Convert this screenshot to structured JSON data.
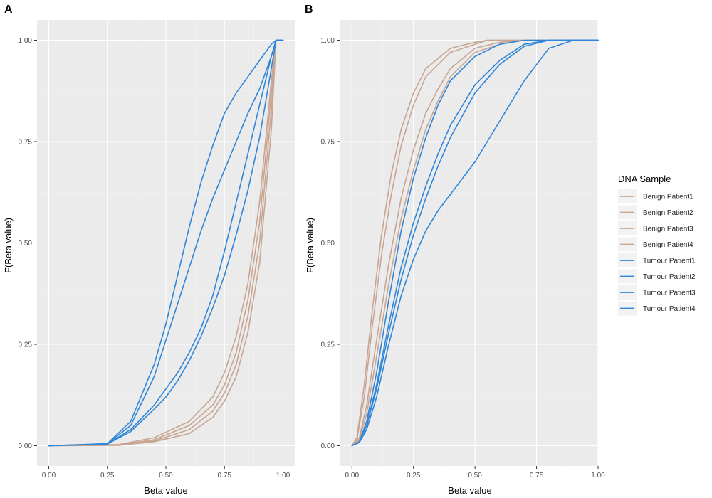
{
  "chart_data": [
    {
      "type": "line",
      "panel_label": "A",
      "xlabel": "Beta value",
      "ylabel": "F(Beta value)",
      "xlim": [
        -0.05,
        1.05
      ],
      "ylim": [
        -0.05,
        1.05
      ],
      "x_ticks": [
        "0.00",
        "0.25",
        "0.50",
        "0.75",
        "1.00"
      ],
      "y_ticks": [
        "0.00",
        "0.25",
        "0.50",
        "0.75",
        "1.00"
      ],
      "grid": true,
      "series": [
        {
          "name": "Benign Patient1",
          "color": "#c8a592",
          "x": [
            0.0,
            0.3,
            0.45,
            0.6,
            0.7,
            0.75,
            0.8,
            0.85,
            0.9,
            0.95,
            0.97,
            1.0
          ],
          "y": [
            0.0,
            0.003,
            0.02,
            0.06,
            0.12,
            0.18,
            0.27,
            0.4,
            0.6,
            0.9,
            1.0,
            1.0
          ]
        },
        {
          "name": "Benign Patient2",
          "color": "#c8a592",
          "x": [
            0.0,
            0.3,
            0.45,
            0.6,
            0.7,
            0.75,
            0.8,
            0.85,
            0.9,
            0.95,
            0.97,
            1.0
          ],
          "y": [
            0.0,
            0.002,
            0.015,
            0.05,
            0.1,
            0.15,
            0.23,
            0.36,
            0.55,
            0.87,
            1.0,
            1.0
          ]
        },
        {
          "name": "Benign Patient3",
          "color": "#c8a592",
          "x": [
            0.0,
            0.3,
            0.45,
            0.6,
            0.7,
            0.75,
            0.8,
            0.85,
            0.9,
            0.95,
            0.97,
            1.0
          ],
          "y": [
            0.0,
            0.002,
            0.012,
            0.04,
            0.085,
            0.13,
            0.2,
            0.32,
            0.5,
            0.83,
            1.0,
            1.0
          ]
        },
        {
          "name": "Benign Patient4",
          "color": "#c8a592",
          "x": [
            0.0,
            0.3,
            0.45,
            0.6,
            0.7,
            0.75,
            0.8,
            0.85,
            0.9,
            0.95,
            0.97,
            1.0
          ],
          "y": [
            0.0,
            0.001,
            0.01,
            0.03,
            0.07,
            0.11,
            0.17,
            0.28,
            0.45,
            0.78,
            1.0,
            1.0
          ]
        },
        {
          "name": "Tumour Patient1",
          "color": "#2f86d8",
          "x": [
            0.0,
            0.25,
            0.35,
            0.45,
            0.5,
            0.55,
            0.6,
            0.65,
            0.7,
            0.75,
            0.8,
            0.85,
            0.9,
            0.95,
            0.97,
            1.0
          ],
          "y": [
            0.0,
            0.005,
            0.06,
            0.2,
            0.3,
            0.42,
            0.54,
            0.65,
            0.74,
            0.82,
            0.87,
            0.91,
            0.95,
            0.99,
            1.0,
            1.0
          ]
        },
        {
          "name": "Tumour Patient2",
          "color": "#2f86d8",
          "x": [
            0.0,
            0.25,
            0.35,
            0.45,
            0.5,
            0.55,
            0.6,
            0.65,
            0.7,
            0.75,
            0.8,
            0.85,
            0.9,
            0.95,
            0.97,
            1.0
          ],
          "y": [
            0.0,
            0.005,
            0.05,
            0.17,
            0.26,
            0.35,
            0.44,
            0.53,
            0.61,
            0.68,
            0.75,
            0.82,
            0.88,
            0.96,
            1.0,
            1.0
          ]
        },
        {
          "name": "Tumour Patient3",
          "color": "#2f86d8",
          "x": [
            0.0,
            0.25,
            0.35,
            0.45,
            0.5,
            0.55,
            0.6,
            0.65,
            0.7,
            0.75,
            0.8,
            0.85,
            0.9,
            0.95,
            0.97,
            1.0
          ],
          "y": [
            0.0,
            0.004,
            0.04,
            0.1,
            0.14,
            0.18,
            0.23,
            0.29,
            0.37,
            0.48,
            0.6,
            0.72,
            0.84,
            0.96,
            1.0,
            1.0
          ]
        },
        {
          "name": "Tumour Patient4",
          "color": "#2f86d8",
          "x": [
            0.0,
            0.25,
            0.35,
            0.45,
            0.5,
            0.55,
            0.6,
            0.65,
            0.7,
            0.75,
            0.8,
            0.85,
            0.9,
            0.95,
            0.97,
            1.0
          ],
          "y": [
            0.0,
            0.004,
            0.035,
            0.09,
            0.12,
            0.16,
            0.21,
            0.27,
            0.34,
            0.42,
            0.52,
            0.63,
            0.76,
            0.93,
            1.0,
            1.0
          ]
        }
      ]
    },
    {
      "type": "line",
      "panel_label": "B",
      "xlabel": "Beta value",
      "ylabel": "F(Beta value)",
      "xlim": [
        -0.05,
        1.0
      ],
      "ylim": [
        -0.05,
        1.05
      ],
      "x_ticks": [
        "0.00",
        "0.25",
        "0.50",
        "0.75",
        "1.00"
      ],
      "y_ticks": [
        "0.00",
        "0.25",
        "0.50",
        "0.75",
        "1.00"
      ],
      "grid": true,
      "series": [
        {
          "name": "Benign Patient1",
          "color": "#c8a592",
          "x": [
            0.0,
            0.02,
            0.05,
            0.08,
            0.12,
            0.16,
            0.2,
            0.25,
            0.3,
            0.4,
            0.5,
            0.55,
            0.6,
            1.0
          ],
          "y": [
            0.0,
            0.02,
            0.15,
            0.32,
            0.52,
            0.67,
            0.78,
            0.87,
            0.93,
            0.98,
            0.995,
            1.0,
            1.0,
            1.0
          ]
        },
        {
          "name": "Benign Patient2",
          "color": "#c8a592",
          "x": [
            0.0,
            0.02,
            0.05,
            0.08,
            0.12,
            0.16,
            0.2,
            0.25,
            0.3,
            0.4,
            0.5,
            0.55,
            0.6,
            1.0
          ],
          "y": [
            0.0,
            0.015,
            0.12,
            0.28,
            0.47,
            0.62,
            0.74,
            0.84,
            0.91,
            0.97,
            0.99,
            1.0,
            1.0,
            1.0
          ]
        },
        {
          "name": "Benign Patient3",
          "color": "#c8a592",
          "x": [
            0.0,
            0.03,
            0.06,
            0.1,
            0.15,
            0.2,
            0.25,
            0.3,
            0.35,
            0.4,
            0.5,
            0.6,
            0.7,
            1.0
          ],
          "y": [
            0.0,
            0.02,
            0.1,
            0.26,
            0.45,
            0.61,
            0.73,
            0.82,
            0.88,
            0.93,
            0.98,
            0.995,
            1.0,
            1.0
          ]
        },
        {
          "name": "Benign Patient4",
          "color": "#c8a592",
          "x": [
            0.0,
            0.03,
            0.06,
            0.1,
            0.15,
            0.2,
            0.25,
            0.3,
            0.35,
            0.4,
            0.5,
            0.6,
            0.7,
            1.0
          ],
          "y": [
            0.0,
            0.015,
            0.08,
            0.22,
            0.4,
            0.56,
            0.68,
            0.78,
            0.85,
            0.91,
            0.97,
            0.99,
            1.0,
            1.0
          ]
        },
        {
          "name": "Tumour Patient1",
          "color": "#2f86d8",
          "x": [
            0.0,
            0.03,
            0.06,
            0.1,
            0.15,
            0.2,
            0.25,
            0.3,
            0.35,
            0.4,
            0.5,
            0.6,
            0.7,
            1.0
          ],
          "y": [
            0.0,
            0.01,
            0.06,
            0.18,
            0.36,
            0.53,
            0.66,
            0.76,
            0.84,
            0.9,
            0.96,
            0.99,
            1.0,
            1.0
          ]
        },
        {
          "name": "Tumour Patient2",
          "color": "#2f86d8",
          "x": [
            0.0,
            0.03,
            0.06,
            0.1,
            0.15,
            0.2,
            0.25,
            0.3,
            0.35,
            0.4,
            0.5,
            0.6,
            0.7,
            0.8,
            1.0
          ],
          "y": [
            0.0,
            0.01,
            0.05,
            0.15,
            0.3,
            0.44,
            0.55,
            0.64,
            0.72,
            0.79,
            0.89,
            0.95,
            0.99,
            1.0,
            1.0
          ]
        },
        {
          "name": "Tumour Patient3",
          "color": "#2f86d8",
          "x": [
            0.0,
            0.03,
            0.06,
            0.1,
            0.15,
            0.2,
            0.25,
            0.3,
            0.35,
            0.4,
            0.5,
            0.6,
            0.7,
            0.8,
            1.0
          ],
          "y": [
            0.0,
            0.01,
            0.05,
            0.14,
            0.28,
            0.41,
            0.52,
            0.61,
            0.69,
            0.76,
            0.87,
            0.94,
            0.985,
            1.0,
            1.0
          ]
        },
        {
          "name": "Tumour Patient4",
          "color": "#2f86d8",
          "x": [
            0.0,
            0.03,
            0.06,
            0.1,
            0.15,
            0.2,
            0.25,
            0.3,
            0.35,
            0.4,
            0.5,
            0.6,
            0.7,
            0.8,
            0.9,
            1.0
          ],
          "y": [
            0.0,
            0.008,
            0.04,
            0.12,
            0.25,
            0.37,
            0.46,
            0.53,
            0.58,
            0.62,
            0.7,
            0.8,
            0.9,
            0.98,
            1.0,
            1.0
          ]
        }
      ]
    }
  ],
  "legend": {
    "title": "DNA Sample",
    "placement": "right",
    "items": [
      {
        "label": "Benign Patient1",
        "color": "#c8a592"
      },
      {
        "label": "Benign Patient2",
        "color": "#c8a592"
      },
      {
        "label": "Benign Patient3",
        "color": "#c8a592"
      },
      {
        "label": "Benign Patient4",
        "color": "#c8a592"
      },
      {
        "label": "Tumour Patient1",
        "color": "#2f86d8"
      },
      {
        "label": "Tumour Patient2",
        "color": "#2f86d8"
      },
      {
        "label": "Tumour Patient3",
        "color": "#2f86d8"
      },
      {
        "label": "Tumour Patient4",
        "color": "#2f86d8"
      }
    ]
  },
  "colors": {
    "panel_background": "#ebebeb",
    "grid_major": "#ffffff",
    "grid_minor": "#f3f3f3"
  }
}
